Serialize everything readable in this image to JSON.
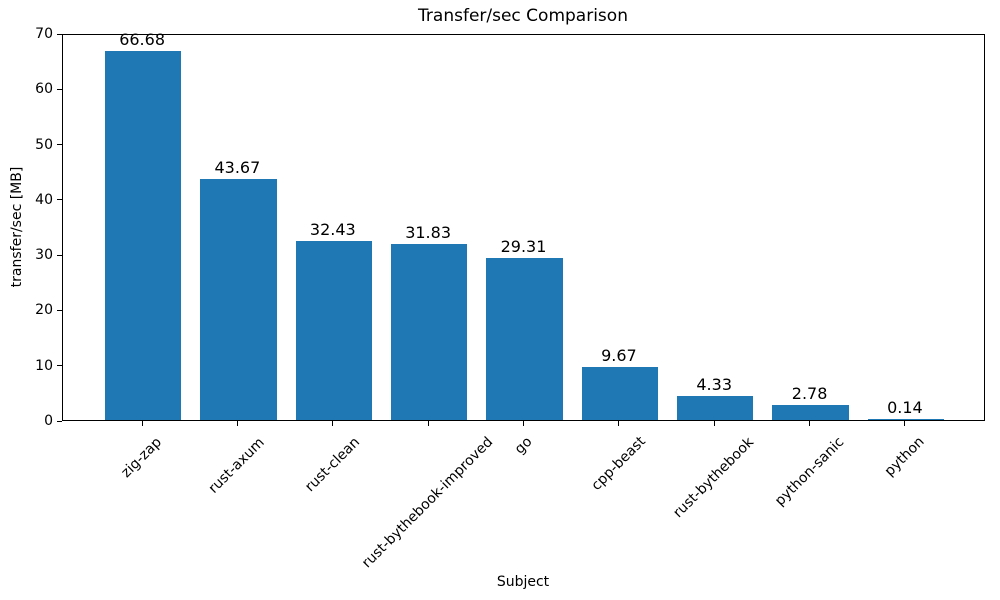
{
  "chart_data": {
    "type": "bar",
    "title": "Transfer/sec Comparison",
    "xlabel": "Subject",
    "ylabel": "transfer/sec [MB]",
    "categories": [
      "zig-zap",
      "rust-axum",
      "rust-clean",
      "rust-bythebook-improved",
      "go",
      "cpp-beast",
      "rust-bythebook",
      "python-sanic",
      "python"
    ],
    "values": [
      66.68,
      43.67,
      32.43,
      31.83,
      29.31,
      9.67,
      4.33,
      2.78,
      0.14
    ],
    "bar_labels": [
      "66.68",
      "43.67",
      "32.43",
      "31.83",
      "29.31",
      "9.67",
      "4.33",
      "2.78",
      "0.14"
    ],
    "ylim": [
      0,
      70
    ],
    "yticks": [
      0,
      10,
      20,
      30,
      40,
      50,
      60,
      70
    ],
    "bar_color": "#1f77b4",
    "text_color": "#000000",
    "background_color": "#ffffff",
    "grid": false,
    "legend": "none",
    "x_tick_rotation_deg": 45
  }
}
